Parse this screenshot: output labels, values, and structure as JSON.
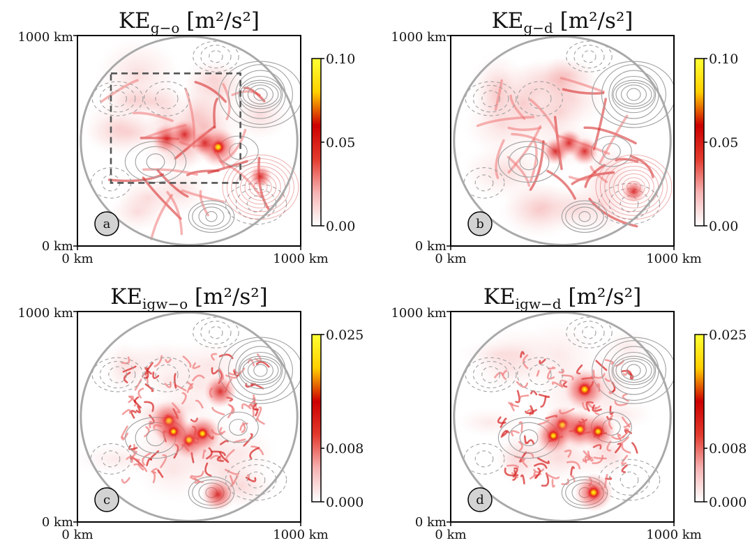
{
  "chart_data": [
    {
      "type": "heatmap",
      "panel": "a",
      "title_main": "KE",
      "title_sub": "g−o",
      "title_units": " [m²/s²]",
      "x_tick_labels": [
        "0 km",
        "1000 km"
      ],
      "y_tick_labels": [
        "0 km",
        "1000 km"
      ],
      "xlim": [
        0,
        1000
      ],
      "ylim": [
        0,
        1000
      ],
      "colorbar": {
        "min": 0.0,
        "max": 0.1,
        "ticks": [
          0.0,
          0.05,
          0.1
        ],
        "tick_labels": [
          "0.00",
          "0.05",
          "0.10"
        ]
      },
      "colormap": [
        "#ffffff",
        "#f6b3b3",
        "#e33a2e",
        "#cc0000",
        "#ffd000",
        "#ffff33"
      ],
      "dashed_box_km": {
        "x0": 150,
        "y0": 300,
        "x1": 730,
        "y1": 820
      },
      "hotspots_km": [
        [
          630,
          470,
          0.085
        ],
        [
          400,
          510,
          0.05
        ],
        [
          480,
          530,
          0.05
        ],
        [
          820,
          330,
          0.03
        ],
        [
          570,
          490,
          0.04
        ]
      ]
    },
    {
      "type": "heatmap",
      "panel": "b",
      "title_main": "KE",
      "title_sub": "g−d",
      "title_units": " [m²/s²]",
      "x_tick_labels": [
        "0 km",
        "1000 km"
      ],
      "y_tick_labels": [
        "0 km",
        "1000 km"
      ],
      "xlim": [
        0,
        1000
      ],
      "ylim": [
        0,
        1000
      ],
      "colorbar": {
        "min": 0.0,
        "max": 0.1,
        "ticks": [
          0.0,
          0.05,
          0.1
        ],
        "tick_labels": [
          "0.00",
          "0.05",
          "0.10"
        ]
      },
      "colormap": [
        "#ffffff",
        "#f6b3b3",
        "#e33a2e",
        "#cc0000",
        "#ffd000",
        "#ffff33"
      ],
      "hotspots_km": [
        [
          600,
          450,
          0.045
        ],
        [
          470,
          450,
          0.04
        ],
        [
          820,
          260,
          0.03
        ],
        [
          530,
          490,
          0.04
        ]
      ]
    },
    {
      "type": "heatmap",
      "panel": "c",
      "title_main": "KE",
      "title_sub": "igw−o",
      "title_units": " [m²/s²]",
      "x_tick_labels": [
        "0 km",
        "1000 km"
      ],
      "y_tick_labels": [
        "0 km",
        "1000 km"
      ],
      "xlim": [
        0,
        1000
      ],
      "ylim": [
        0,
        1000
      ],
      "colorbar": {
        "min": 0.0,
        "max": 0.025,
        "ticks": [
          0.0,
          0.008,
          0.025
        ],
        "tick_labels": [
          "0.000",
          "0.008",
          "0.025"
        ]
      },
      "colormap": [
        "#ffffff",
        "#f6b3b3",
        "#e33a2e",
        "#cc0000",
        "#ffd000",
        "#ffff33"
      ],
      "hotspots_km": [
        [
          410,
          480,
          0.022
        ],
        [
          500,
          390,
          0.02
        ],
        [
          560,
          420,
          0.018
        ],
        [
          630,
          130,
          0.015
        ],
        [
          640,
          620,
          0.015
        ],
        [
          430,
          430,
          0.016
        ]
      ]
    },
    {
      "type": "heatmap",
      "panel": "d",
      "title_main": "KE",
      "title_sub": "igw−d",
      "title_units": " [m²/s²]",
      "x_tick_labels": [
        "0 km",
        "1000 km"
      ],
      "y_tick_labels": [
        "0 km",
        "1000 km"
      ],
      "xlim": [
        0,
        1000
      ],
      "ylim": [
        0,
        1000
      ],
      "colorbar": {
        "min": 0.0,
        "max": 0.025,
        "ticks": [
          0.0,
          0.008,
          0.025
        ],
        "tick_labels": [
          "0.000",
          "0.008",
          "0.025"
        ]
      },
      "colormap": [
        "#ffffff",
        "#f6b3b3",
        "#e33a2e",
        "#cc0000",
        "#ffd000",
        "#ffff33"
      ],
      "hotspots_km": [
        [
          600,
          630,
          0.022
        ],
        [
          500,
          460,
          0.02
        ],
        [
          580,
          440,
          0.02
        ],
        [
          660,
          430,
          0.018
        ],
        [
          460,
          410,
          0.018
        ],
        [
          640,
          140,
          0.02
        ]
      ]
    }
  ],
  "panel_labels": [
    "a",
    "b",
    "c",
    "d"
  ],
  "colors": {
    "circle": "#a9a9a9",
    "contour": "#a0a0a0",
    "box": "#555555",
    "label_bg": "#d3d3d3"
  }
}
